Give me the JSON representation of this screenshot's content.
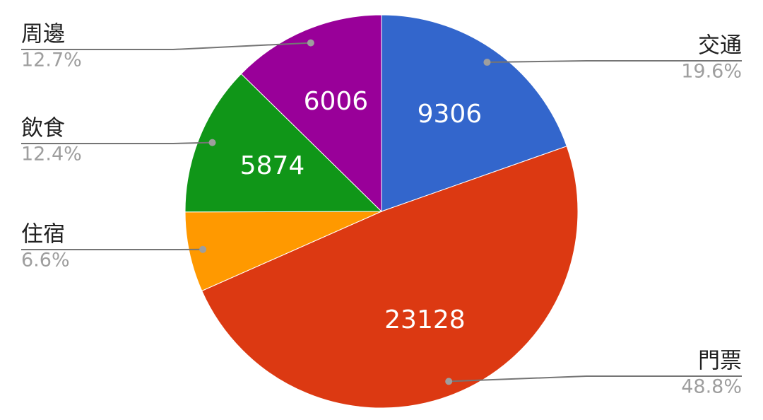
{
  "chart_data": {
    "type": "pie",
    "categories": [
      "交通",
      "門票",
      "住宿",
      "飲食",
      "周邊"
    ],
    "values": [
      9306,
      23128,
      3120,
      5874,
      6006
    ],
    "percent_labels": [
      "19.6%",
      "48.8%",
      "6.6%",
      "12.4%",
      "12.7%"
    ],
    "colors": [
      "#3366cc",
      "#dc3912",
      "#ff9900",
      "#109618",
      "#990099"
    ]
  }
}
